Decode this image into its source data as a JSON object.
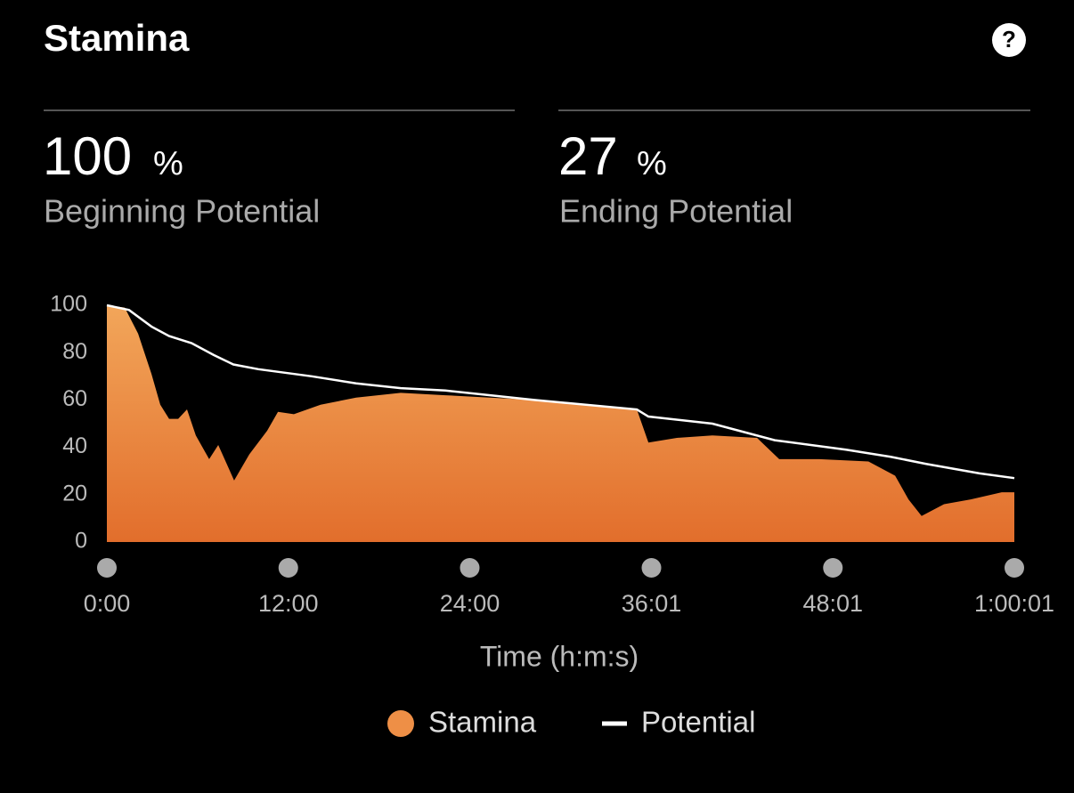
{
  "header": {
    "title": "Stamina",
    "help_icon": "?"
  },
  "stats": [
    {
      "value": 100,
      "unit": "%",
      "label": "Beginning Potential"
    },
    {
      "value": 27,
      "unit": "%",
      "label": "Ending Potential"
    }
  ],
  "chart_data": {
    "type": "area-line",
    "x_label": "Time (h:m:s)",
    "xlim": [
      0,
      3601
    ],
    "xticks": [
      {
        "value": 0,
        "label": "0:00"
      },
      {
        "value": 720,
        "label": "12:00"
      },
      {
        "value": 1440,
        "label": "24:00"
      },
      {
        "value": 2161,
        "label": "36:01"
      },
      {
        "value": 2881,
        "label": "48:01"
      },
      {
        "value": 3601,
        "label": "1:00:01"
      }
    ],
    "ylim": [
      0,
      100
    ],
    "yticks": [
      0,
      20,
      40,
      60,
      80,
      100
    ],
    "series": [
      {
        "name": "Stamina",
        "kind": "area",
        "color": "#ee8f46",
        "x": [
          0,
          71,
          124,
          177,
          212,
          247,
          283,
          318,
          353,
          406,
          442,
          505,
          565,
          636,
          679,
          742,
          848,
          989,
          1166,
          1343,
          1519,
          1696,
          1873,
          2103,
          2149,
          2262,
          2403,
          2580,
          2668,
          2827,
          3022,
          3128,
          3181,
          3233,
          3322,
          3428,
          3551,
          3601
        ],
        "values": [
          100,
          99,
          88,
          71,
          58,
          52,
          52,
          56,
          45,
          35,
          41,
          26,
          37,
          47,
          55,
          54,
          58,
          61,
          63,
          62,
          61,
          60,
          58,
          56,
          42,
          44,
          45,
          44,
          35,
          35,
          34,
          28,
          18,
          11,
          16,
          18,
          21,
          21
        ]
      },
      {
        "name": "Potential",
        "kind": "line",
        "color": "#ffffff",
        "x": [
          0,
          88,
          177,
          247,
          336,
          424,
          502,
          601,
          813,
          989,
          1166,
          1343,
          1696,
          2103,
          2149,
          2403,
          2650,
          2933,
          3110,
          3251,
          3463,
          3601
        ],
        "values": [
          100,
          98,
          91,
          87,
          84,
          79,
          75,
          73,
          70,
          67,
          65,
          64,
          60,
          56,
          53,
          50,
          43,
          39,
          36,
          33,
          29,
          27
        ]
      }
    ]
  }
}
